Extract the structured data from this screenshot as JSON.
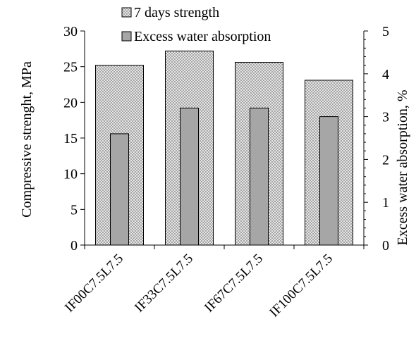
{
  "chart_data": {
    "type": "bar",
    "categories": [
      "IF00C7.5L7.5",
      "IF33C7.5L7.5",
      "IF67C7.5L7.5",
      "IF100C7.5L7.5"
    ],
    "series": [
      {
        "name": "7 days strength",
        "axis": "left",
        "values": [
          25.2,
          27.2,
          25.6,
          23.1
        ],
        "pattern": "crosshatch"
      },
      {
        "name": "Excess water absorption",
        "axis": "right",
        "values": [
          2.6,
          3.2,
          3.2,
          3.0
        ],
        "color": "#a6a6a6"
      }
    ],
    "ylabel": "Compressive strenght, MPa",
    "ylabel_right": "Excess water absorption, %",
    "ylim": [
      0,
      30
    ],
    "ylim_right": [
      0,
      5
    ],
    "yticks": [
      "0",
      "5",
      "10",
      "15",
      "20",
      "25",
      "30"
    ],
    "yticks_right": [
      "0",
      "1",
      "2",
      "3",
      "4",
      "5"
    ],
    "grid": false,
    "legend_position": "top"
  }
}
